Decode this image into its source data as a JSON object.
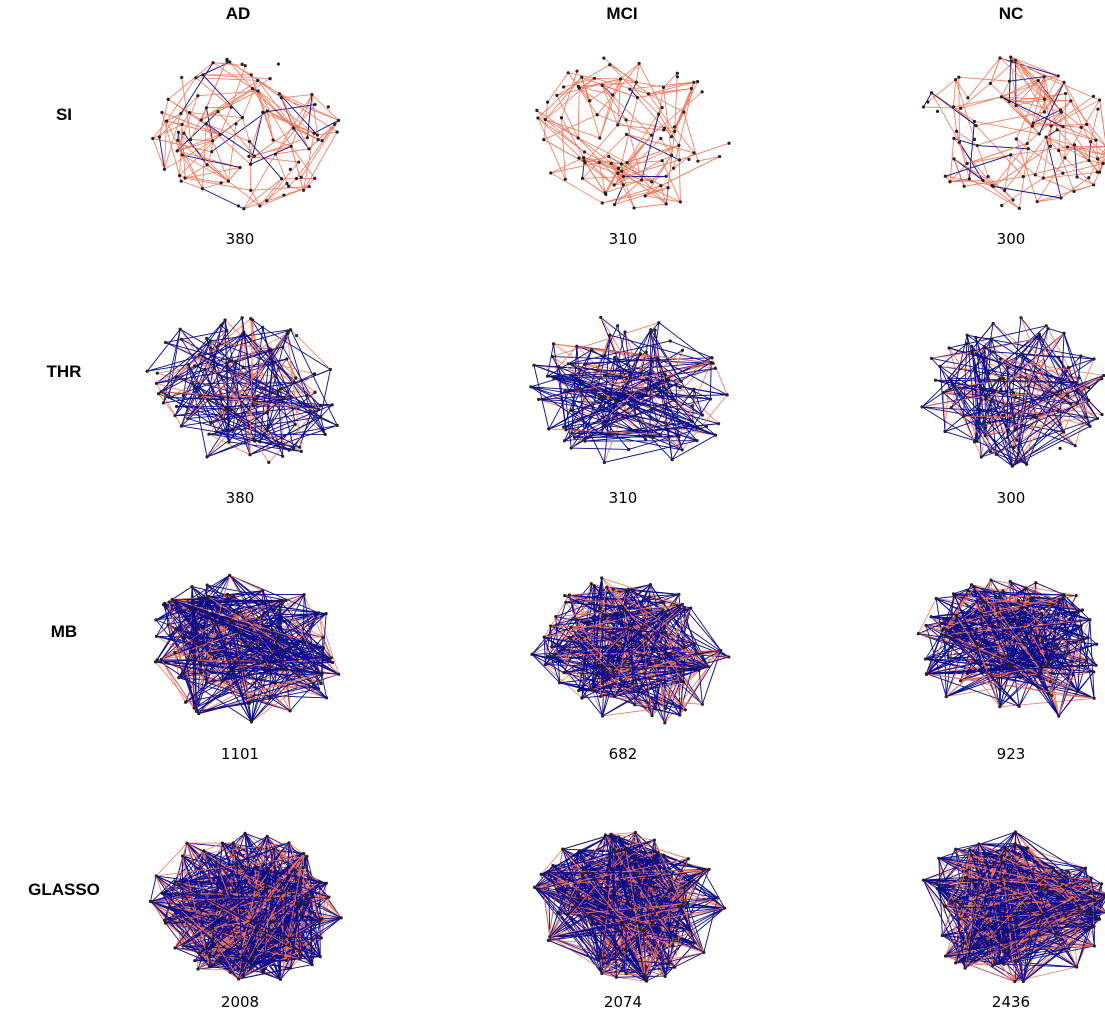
{
  "figure": {
    "columns": [
      "AD",
      "MCI",
      "NC"
    ],
    "rows": [
      {
        "label": "SI",
        "counts": [
          "380",
          "310",
          "300"
        ]
      },
      {
        "label": "THR",
        "counts": [
          "380",
          "310",
          "300"
        ]
      },
      {
        "label": "MB",
        "counts": [
          "1101",
          "682",
          "923"
        ]
      },
      {
        "label": "GLASSO",
        "counts": [
          "2008",
          "2074",
          "2436"
        ]
      }
    ],
    "colors": {
      "edge_primary": "#f4765a",
      "edge_secondary": "#0a0a8c",
      "node": "#222222"
    }
  }
}
